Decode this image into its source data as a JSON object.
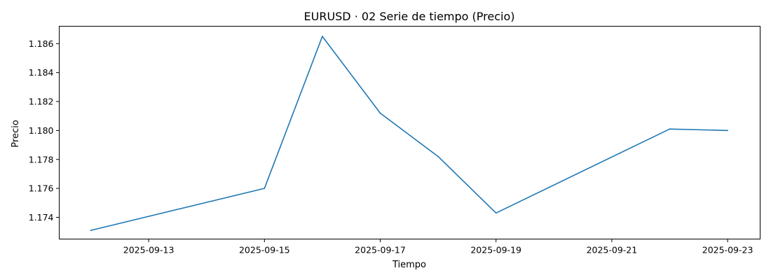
{
  "chart_data": {
    "type": "line",
    "title": "EURUSD · 02 Serie de tiempo (Precio)",
    "xlabel": "Tiempo",
    "ylabel": "Precio",
    "x_ticks": [
      "2025-09-13",
      "2025-09-15",
      "2025-09-17",
      "2025-09-19",
      "2025-09-21",
      "2025-09-23"
    ],
    "y_ticks": [
      "1.174",
      "1.176",
      "1.178",
      "1.180",
      "1.182",
      "1.184",
      "1.186"
    ],
    "xlim": [
      "2025-09-11",
      "2025-09-23"
    ],
    "ylim": [
      1.1725,
      1.1872
    ],
    "grid": false,
    "series": [
      {
        "color": "#1f77b4",
        "x": [
          "2025-09-12",
          "2025-09-15",
          "2025-09-16",
          "2025-09-17",
          "2025-09-18",
          "2025-09-19",
          "2025-09-22",
          "2025-09-23"
        ],
        "y": [
          1.1731,
          1.176,
          1.1865,
          1.1812,
          1.1782,
          1.1743,
          1.1801,
          1.18
        ]
      }
    ]
  }
}
